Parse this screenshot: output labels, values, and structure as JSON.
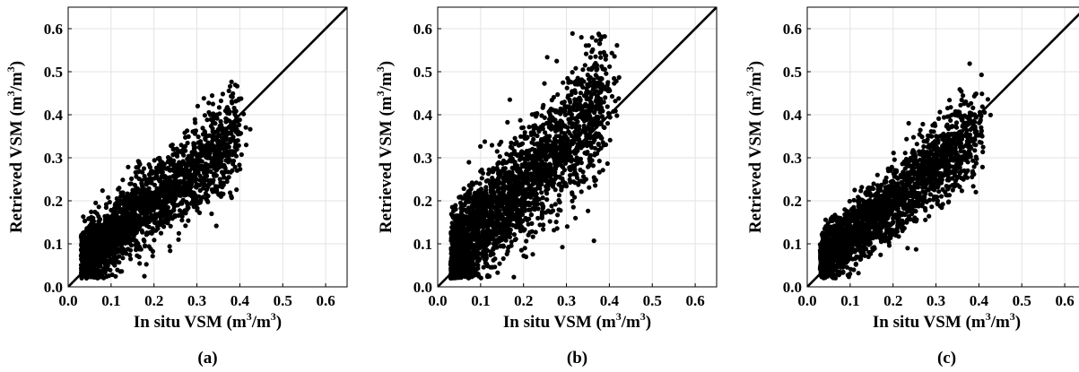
{
  "chart_data": [
    {
      "type": "scatter",
      "panel_label": "(a)",
      "xlabel": {
        "pre": "In situ VSM (m",
        "sup": "3",
        "mid": "/m",
        "sup2": "3",
        "post": ")"
      },
      "ylabel": {
        "pre": "Retrieved VSM (m",
        "sup": "3",
        "mid": "/m",
        "sup2": "3",
        "post": ")"
      },
      "xlim": [
        0,
        0.65
      ],
      "ylim": [
        0,
        0.65
      ],
      "xticks": [
        "0.0",
        "0.1",
        "0.2",
        "0.3",
        "0.4",
        "0.5",
        "0.6"
      ],
      "yticks": [
        "0.0",
        "0.1",
        "0.2",
        "0.3",
        "0.4",
        "0.5",
        "0.6"
      ],
      "grid": true,
      "reference_line": "1:1",
      "point_color": "#000000",
      "cloud": {
        "xmin": 0.03,
        "xmax": 0.46,
        "ymin": 0.02,
        "ymax": 0.54,
        "slope": 0.78,
        "intercept": 0.04,
        "spread": 0.045,
        "n": 2400
      }
    },
    {
      "type": "scatter",
      "panel_label": "(b)",
      "xlabel": {
        "pre": "In situ VSM (m",
        "sup": "3",
        "mid": "/m",
        "sup2": "3",
        "post": ")"
      },
      "ylabel": {
        "pre": "Retrieved VSM (m",
        "sup": "3",
        "mid": "/m",
        "sup2": "3",
        "post": ")"
      },
      "xlim": [
        0,
        0.65
      ],
      "ylim": [
        0,
        0.65
      ],
      "xticks": [
        "0.0",
        "0.1",
        "0.2",
        "0.3",
        "0.4",
        "0.5",
        "0.6"
      ],
      "yticks": [
        "0.0",
        "0.1",
        "0.2",
        "0.3",
        "0.4",
        "0.5",
        "0.6"
      ],
      "grid": true,
      "reference_line": "1:1",
      "point_color": "#000000",
      "cloud": {
        "xmin": 0.03,
        "xmax": 0.46,
        "ymin": 0.02,
        "ymax": 0.59,
        "slope": 1.0,
        "intercept": 0.04,
        "spread": 0.065,
        "n": 2600
      }
    },
    {
      "type": "scatter",
      "panel_label": "(c)",
      "xlabel": {
        "pre": "In situ VSM (m",
        "sup": "3",
        "mid": "/m",
        "sup2": "3",
        "post": ")"
      },
      "ylabel": {
        "pre": "Retrieved VSM (m",
        "sup": "3",
        "mid": "/m",
        "sup2": "3",
        "post": ")"
      },
      "xlim": [
        0,
        0.65
      ],
      "ylim": [
        0,
        0.65
      ],
      "xticks": [
        "0.0",
        "0.1",
        "0.2",
        "0.3",
        "0.4",
        "0.5",
        "0.6"
      ],
      "yticks": [
        "0.0",
        "0.1",
        "0.2",
        "0.3",
        "0.4",
        "0.5",
        "0.6"
      ],
      "grid": true,
      "reference_line": "1:1",
      "point_color": "#000000",
      "cloud": {
        "xmin": 0.03,
        "xmax": 0.46,
        "ymin": 0.02,
        "ymax": 0.52,
        "slope": 0.82,
        "intercept": 0.035,
        "spread": 0.042,
        "n": 2300
      }
    }
  ]
}
